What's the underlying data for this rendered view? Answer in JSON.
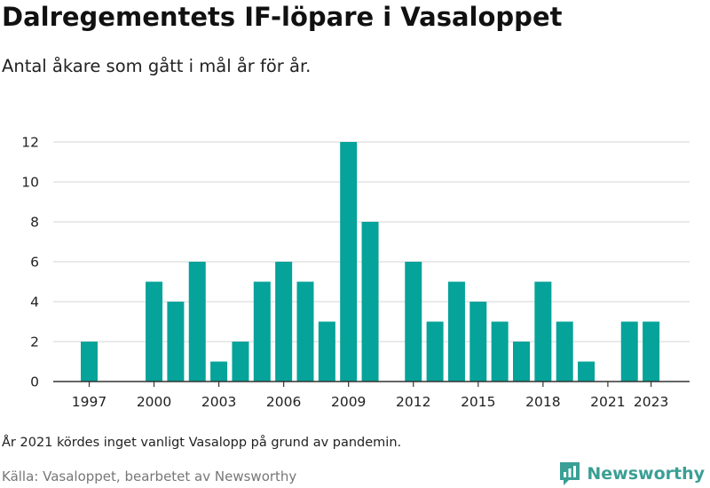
{
  "header": {
    "title": "Dalregementets IF-löpare i Vasaloppet",
    "subtitle": "Antal åkare som gått i mål år för år."
  },
  "footer": {
    "note": "År 2021 kördes inget vanligt Vasalopp på grund av pandemin.",
    "source": "Källa: Vasaloppet, bearbetet av Newsworthy",
    "logo_text": "Newsworthy",
    "logo_icon": "newsworthy-logo-icon"
  },
  "colors": {
    "bar": "#05a39a",
    "grid": "#dddddd",
    "axis": "#333333",
    "brand": "#3a9f95"
  },
  "chart_data": {
    "type": "bar",
    "x": [
      1997,
      1998,
      1999,
      2000,
      2001,
      2002,
      2003,
      2004,
      2005,
      2006,
      2007,
      2008,
      2009,
      2010,
      2011,
      2012,
      2013,
      2014,
      2015,
      2016,
      2017,
      2018,
      2019,
      2020,
      2021,
      2022,
      2023
    ],
    "values": [
      2,
      0,
      0,
      5,
      4,
      6,
      1,
      2,
      5,
      6,
      5,
      3,
      12,
      8,
      0,
      6,
      3,
      5,
      4,
      3,
      2,
      5,
      3,
      1,
      0,
      3,
      3
    ],
    "x_tick_labels": [
      "1997",
      "2000",
      "2003",
      "2006",
      "2009",
      "2012",
      "2015",
      "2018",
      "2021",
      "2023"
    ],
    "y_ticks": [
      0,
      2,
      4,
      6,
      8,
      10,
      12
    ],
    "ylim": [
      0,
      12
    ],
    "grid": true,
    "legend": "none"
  }
}
